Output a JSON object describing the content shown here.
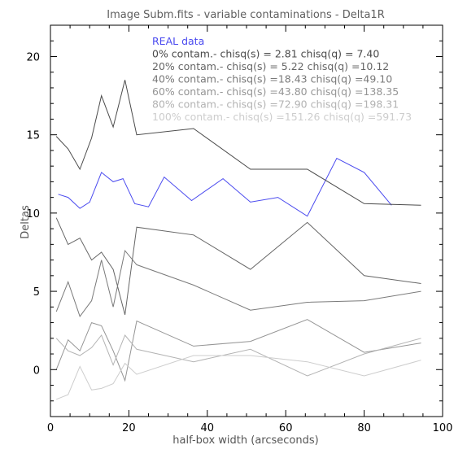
{
  "chart_data": {
    "type": "line",
    "title": "Image Subm.fits - variable contaminations - Delta1R",
    "xlabel": "half-box width (arcseconds)",
    "ylabel": "Deltas",
    "xlim": [
      0,
      100
    ],
    "ylim": [
      -3,
      22
    ],
    "xticks": [
      0,
      20,
      40,
      60,
      80,
      100
    ],
    "yticks": [
      0,
      5,
      10,
      15,
      20
    ],
    "x_tick_labels": [
      "0",
      "20",
      "40",
      "60",
      "80",
      "100"
    ],
    "y_tick_labels": [
      "0",
      "5",
      "10",
      "15",
      "20"
    ],
    "grid": false,
    "legend_position": "top",
    "series": [
      {
        "name": "REAL data",
        "color": "#4a4aef",
        "x": [
          2,
          4.5,
          7.5,
          10,
          13,
          16,
          18.5,
          21.5,
          25,
          29,
          36,
          44,
          51,
          58,
          65.5,
          73,
          80,
          87
        ],
        "y": [
          11.2,
          11.0,
          10.3,
          10.7,
          12.6,
          12.0,
          12.2,
          10.6,
          10.4,
          12.3,
          10.8,
          12.2,
          10.7,
          11.0,
          9.8,
          13.5,
          12.6,
          10.5
        ]
      },
      {
        "name": "0% contam.- chisq(s) = 2.81 chisq(q) = 7.40",
        "color": "#4a4a4a",
        "x": [
          1.5,
          4.5,
          7.5,
          10.5,
          13,
          16,
          19,
          22,
          36.5,
          51,
          65.5,
          80,
          94.5
        ],
        "y": [
          14.9,
          14.1,
          12.8,
          14.8,
          17.5,
          15.5,
          18.5,
          15.0,
          15.4,
          12.8,
          12.8,
          10.6,
          10.5
        ]
      },
      {
        "name": "20% contam.- chisq(s) = 5.22 chisq(q) =10.12",
        "color": "#666666",
        "x": [
          1.5,
          4.5,
          7.5,
          10.5,
          13,
          16,
          19,
          22,
          36.5,
          51,
          65.5,
          80,
          94.5
        ],
        "y": [
          9.7,
          8.0,
          8.4,
          7.0,
          7.5,
          6.4,
          3.5,
          9.1,
          8.6,
          6.4,
          9.4,
          6.0,
          5.5
        ]
      },
      {
        "name": "40% contam.- chisq(s) =18.43 chisq(q) =49.10",
        "color": "#7a7a7a",
        "x": [
          1.5,
          4.5,
          7.5,
          10.5,
          13,
          16,
          19,
          22,
          36.5,
          51,
          65.5,
          80,
          94.5
        ],
        "y": [
          3.7,
          5.6,
          3.4,
          4.4,
          7.0,
          4.0,
          7.6,
          6.7,
          5.4,
          3.8,
          4.3,
          4.4,
          5.0
        ]
      },
      {
        "name": "60% contam.- chisq(s) =43.80 chisq(q) =138.35",
        "color": "#959595",
        "x": [
          1.5,
          4.5,
          7.5,
          10.5,
          13,
          16,
          19,
          22,
          36.5,
          51,
          65.5,
          80,
          94.5
        ],
        "y": [
          0.0,
          1.9,
          1.2,
          3.0,
          2.8,
          1.2,
          -0.7,
          3.1,
          1.5,
          1.8,
          3.2,
          1.1,
          1.7
        ]
      },
      {
        "name": "80% contam.- chisq(s) =72.90 chisq(q) =198.31",
        "color": "#b3b3b3",
        "x": [
          1.5,
          4.5,
          7.5,
          10.5,
          13,
          16,
          19,
          22,
          36.5,
          51,
          65.5,
          80,
          94.5
        ],
        "y": [
          2.0,
          1.2,
          0.9,
          1.4,
          2.2,
          0.3,
          2.2,
          1.3,
          0.5,
          1.3,
          -0.4,
          1.0,
          2.0
        ]
      },
      {
        "name": "100% contam.- chisq(s) =151.26 chisq(q) =591.73",
        "color": "#cdcdcd",
        "x": [
          1.5,
          4.5,
          7.5,
          10.5,
          13,
          16,
          19,
          22,
          36.5,
          51,
          65.5,
          80,
          94.5
        ],
        "y": [
          -1.9,
          -1.6,
          0.2,
          -1.3,
          -1.2,
          -0.9,
          0.4,
          -0.3,
          0.9,
          0.9,
          0.5,
          -0.4,
          0.6
        ]
      }
    ]
  }
}
